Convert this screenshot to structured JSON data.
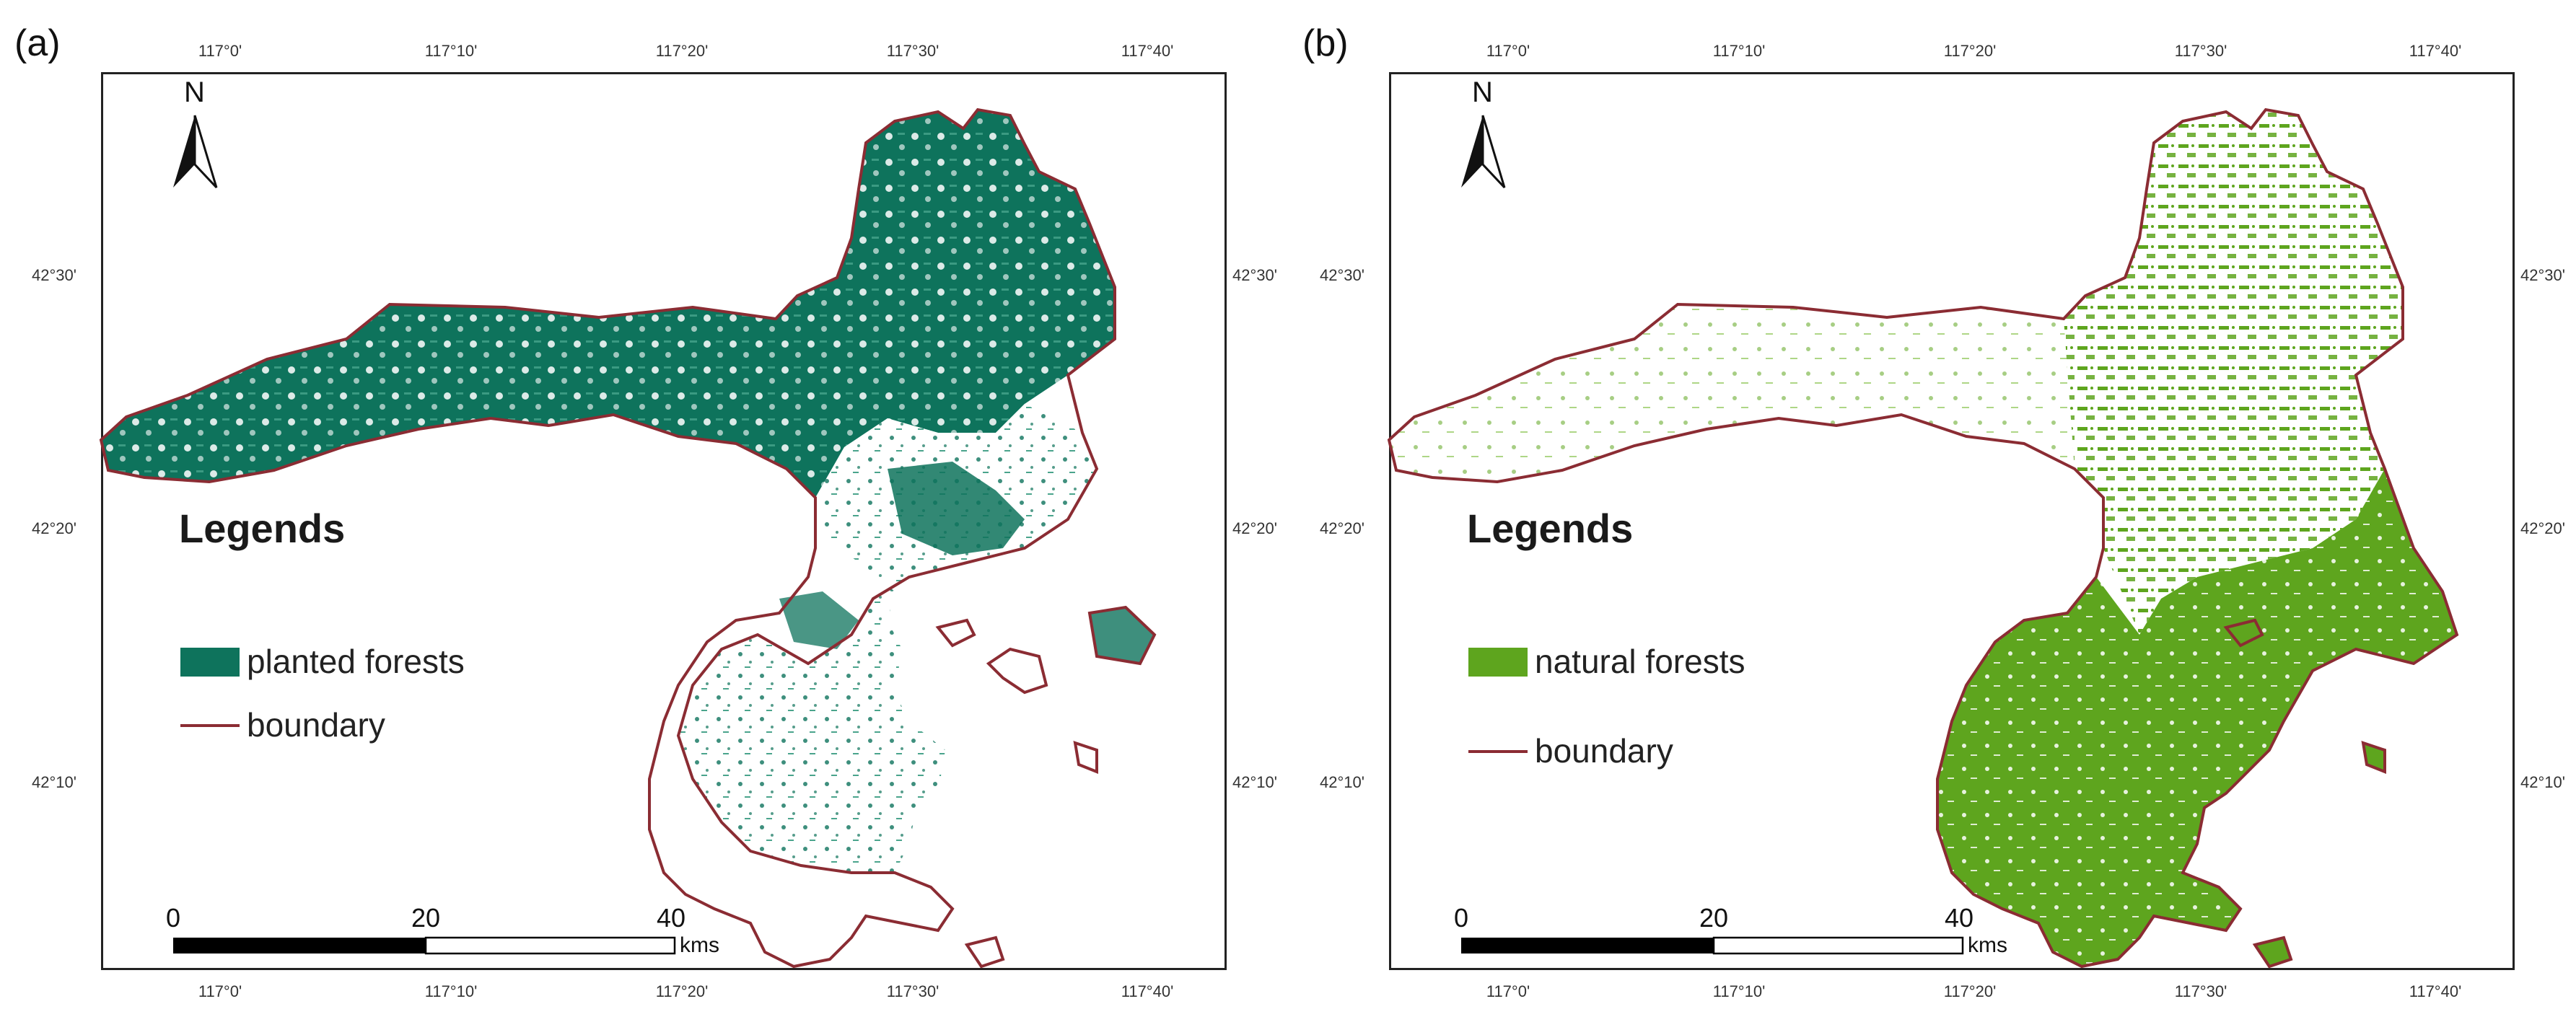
{
  "panels": [
    {
      "label": "(a)",
      "legend_title": "Legends",
      "legend_items": [
        "planted forests",
        "boundary"
      ],
      "fill_color": "#0e735c",
      "boundary_color": "#8b2c33"
    },
    {
      "label": "(b)",
      "legend_title": "Legends",
      "legend_items": [
        "natural forests",
        "boundary"
      ],
      "fill_color": "#5ea51e",
      "boundary_color": "#8b2c33"
    }
  ],
  "lon_ticks": [
    "117°0'",
    "117°10'",
    "117°20'",
    "117°30'",
    "117°40'"
  ],
  "lat_ticks": [
    "42°30'",
    "42°20'",
    "42°10'"
  ],
  "north_label": "N",
  "scale_bar": {
    "labels": [
      "0",
      "20",
      "40"
    ],
    "unit": "kms"
  }
}
